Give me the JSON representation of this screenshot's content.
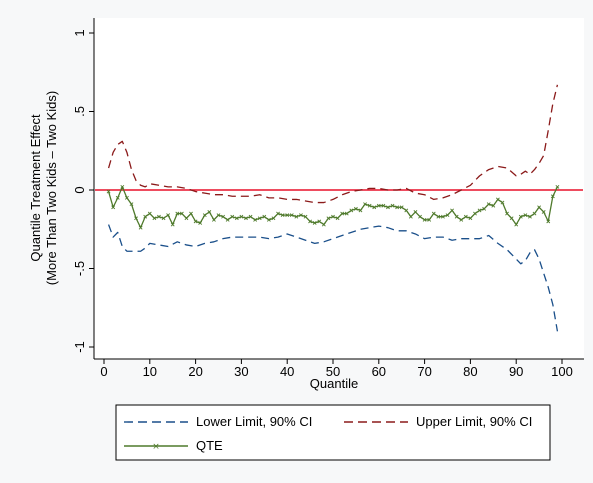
{
  "chart_data": {
    "type": "line",
    "xlabel": "Quantile",
    "ylabel_lines": [
      "Quantile Treatment Effect",
      "(More Than Two Kids – Two Kids)"
    ],
    "xlim": [
      0,
      100
    ],
    "ylim": [
      -1,
      1
    ],
    "xticks": [
      0,
      10,
      20,
      30,
      40,
      50,
      60,
      70,
      80,
      90,
      100
    ],
    "yticks": [
      -1,
      -0.5,
      0,
      0.5,
      1
    ],
    "xtick_labels": [
      "0",
      "10",
      "20",
      "30",
      "40",
      "50",
      "60",
      "70",
      "80",
      "90",
      "100"
    ],
    "ytick_labels": [
      "-1",
      "-.5",
      "0",
      ".5",
      "1"
    ],
    "reference_line": {
      "y": 0,
      "color": "#e8102a"
    },
    "legend": {
      "position": "bottom",
      "entries": [
        "Lower Limit, 90% CI",
        "Upper Limit, 90% CI",
        "QTE"
      ]
    },
    "series": [
      {
        "name": "Lower Limit, 90% CI",
        "color": "#1a4f8a",
        "style": "dashed",
        "x": [
          1,
          2,
          3,
          4,
          5,
          6,
          7,
          8,
          9,
          10,
          12,
          14,
          16,
          18,
          20,
          22,
          24,
          26,
          28,
          30,
          32,
          34,
          36,
          38,
          40,
          42,
          44,
          46,
          48,
          50,
          52,
          54,
          56,
          58,
          60,
          62,
          64,
          66,
          68,
          70,
          72,
          74,
          76,
          78,
          80,
          82,
          84,
          86,
          88,
          90,
          91,
          92,
          93,
          94,
          95,
          96,
          97,
          98,
          99
        ],
        "y": [
          -0.22,
          -0.3,
          -0.27,
          -0.36,
          -0.39,
          -0.39,
          -0.39,
          -0.39,
          -0.37,
          -0.34,
          -0.35,
          -0.36,
          -0.33,
          -0.35,
          -0.36,
          -0.34,
          -0.33,
          -0.31,
          -0.3,
          -0.3,
          -0.3,
          -0.3,
          -0.31,
          -0.3,
          -0.28,
          -0.3,
          -0.32,
          -0.34,
          -0.33,
          -0.31,
          -0.29,
          -0.27,
          -0.25,
          -0.24,
          -0.23,
          -0.24,
          -0.26,
          -0.26,
          -0.28,
          -0.31,
          -0.3,
          -0.3,
          -0.32,
          -0.31,
          -0.31,
          -0.31,
          -0.29,
          -0.34,
          -0.38,
          -0.44,
          -0.47,
          -0.45,
          -0.4,
          -0.38,
          -0.44,
          -0.53,
          -0.62,
          -0.73,
          -0.9
        ]
      },
      {
        "name": "Upper Limit, 90% CI",
        "color": "#8b1a1a",
        "style": "dashed",
        "x": [
          1,
          2,
          3,
          4,
          5,
          6,
          7,
          8,
          9,
          10,
          12,
          14,
          16,
          18,
          20,
          22,
          24,
          26,
          28,
          30,
          32,
          34,
          36,
          38,
          40,
          42,
          44,
          46,
          48,
          50,
          52,
          54,
          56,
          58,
          60,
          62,
          64,
          66,
          68,
          70,
          72,
          74,
          76,
          78,
          80,
          82,
          84,
          86,
          88,
          90,
          91,
          92,
          93,
          94,
          95,
          96,
          97,
          98,
          99
        ],
        "y": [
          0.14,
          0.24,
          0.29,
          0.31,
          0.24,
          0.13,
          0.06,
          0.03,
          0.02,
          0.04,
          0.03,
          0.02,
          0.02,
          0.01,
          -0.01,
          -0.02,
          -0.03,
          -0.03,
          -0.04,
          -0.04,
          -0.04,
          -0.03,
          -0.05,
          -0.05,
          -0.06,
          -0.06,
          -0.07,
          -0.08,
          -0.08,
          -0.06,
          -0.03,
          -0.01,
          0.0,
          0.01,
          0.01,
          0.0,
          0.0,
          0.01,
          -0.02,
          -0.03,
          -0.06,
          -0.05,
          -0.03,
          0.0,
          0.03,
          0.09,
          0.13,
          0.15,
          0.14,
          0.09,
          0.1,
          0.12,
          0.1,
          0.13,
          0.17,
          0.22,
          0.38,
          0.55,
          0.67
        ]
      },
      {
        "name": "QTE",
        "color": "#4f7a2c",
        "style": "solid-markers",
        "x": [
          1,
          2,
          3,
          4,
          5,
          6,
          7,
          8,
          9,
          10,
          11,
          12,
          13,
          14,
          15,
          16,
          17,
          18,
          19,
          20,
          21,
          22,
          23,
          24,
          25,
          26,
          27,
          28,
          29,
          30,
          31,
          32,
          33,
          34,
          35,
          36,
          37,
          38,
          39,
          40,
          41,
          42,
          43,
          44,
          45,
          46,
          47,
          48,
          49,
          50,
          51,
          52,
          53,
          54,
          55,
          56,
          57,
          58,
          59,
          60,
          61,
          62,
          63,
          64,
          65,
          66,
          67,
          68,
          69,
          70,
          71,
          72,
          73,
          74,
          75,
          76,
          77,
          78,
          79,
          80,
          81,
          82,
          83,
          84,
          85,
          86,
          87,
          88,
          89,
          90,
          91,
          92,
          93,
          94,
          95,
          96,
          97,
          98,
          99
        ],
        "y": [
          -0.01,
          -0.11,
          -0.05,
          0.02,
          -0.05,
          -0.09,
          -0.18,
          -0.24,
          -0.17,
          -0.15,
          -0.18,
          -0.17,
          -0.18,
          -0.16,
          -0.22,
          -0.15,
          -0.15,
          -0.18,
          -0.15,
          -0.2,
          -0.21,
          -0.16,
          -0.14,
          -0.19,
          -0.16,
          -0.17,
          -0.19,
          -0.17,
          -0.18,
          -0.17,
          -0.18,
          -0.17,
          -0.19,
          -0.18,
          -0.17,
          -0.19,
          -0.18,
          -0.15,
          -0.16,
          -0.16,
          -0.16,
          -0.17,
          -0.16,
          -0.17,
          -0.2,
          -0.21,
          -0.2,
          -0.22,
          -0.18,
          -0.17,
          -0.18,
          -0.15,
          -0.15,
          -0.13,
          -0.12,
          -0.13,
          -0.09,
          -0.1,
          -0.11,
          -0.1,
          -0.1,
          -0.11,
          -0.1,
          -0.11,
          -0.11,
          -0.13,
          -0.17,
          -0.14,
          -0.17,
          -0.19,
          -0.19,
          -0.15,
          -0.17,
          -0.17,
          -0.16,
          -0.13,
          -0.17,
          -0.19,
          -0.17,
          -0.18,
          -0.15,
          -0.13,
          -0.12,
          -0.09,
          -0.1,
          -0.06,
          -0.08,
          -0.15,
          -0.18,
          -0.22,
          -0.17,
          -0.16,
          -0.17,
          -0.15,
          -0.11,
          -0.14,
          -0.2,
          -0.04,
          0.02
        ]
      }
    ]
  }
}
